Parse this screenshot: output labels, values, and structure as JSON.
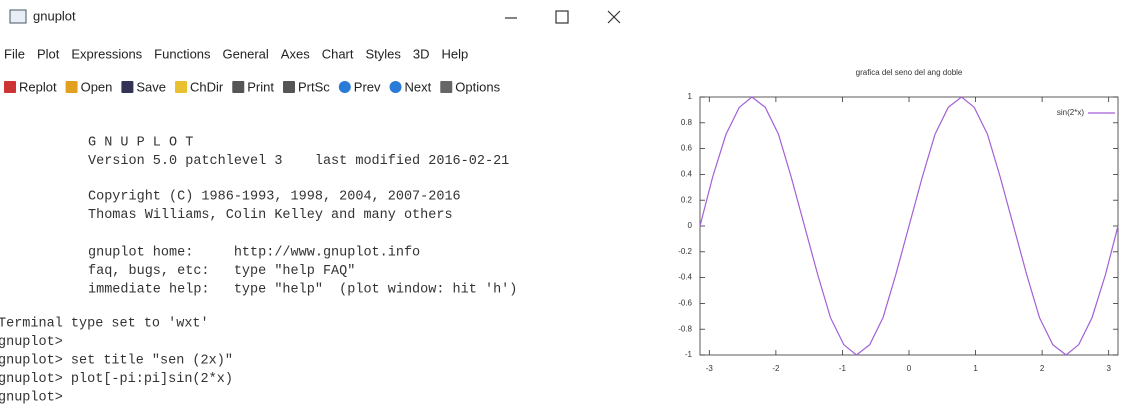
{
  "window": {
    "title": "gnuplot",
    "menu": [
      "File",
      "Plot",
      "Expressions",
      "Functions",
      "General",
      "Axes",
      "Chart",
      "Styles",
      "3D",
      "Help"
    ],
    "toolbar": [
      "Replot",
      "Open",
      "Save",
      "ChDir",
      "Print",
      "PrtSc",
      "Prev",
      "Next",
      "Options"
    ],
    "console": [
      [
        "G N U P L O T",
        "Version 5.0 patchlevel 3    last modified 2016-02-21"
      ],
      [
        "Copyright (C) 1986-1993, 1998, 2004, 2007-2016",
        "Thomas Williams, Colin Kelley and many others"
      ],
      [
        "gnuplot home:     http://www.gnuplot.info",
        "faq, bugs, etc:   type \"help FAQ\"",
        "immediate help:   type \"help\"  (plot window: hit 'h')"
      ],
      [
        "Terminal type set to 'wxt'",
        "gnuplot>",
        "gnuplot> set title \"sen (2x)\"",
        "gnuplot> plot[-pi:pi]sin(2*x)",
        "gnuplot>"
      ]
    ]
  },
  "chart_data": {
    "type": "line",
    "title": "grafica del seno del ang doble",
    "x": [
      -3.14,
      -2.95,
      -2.75,
      -2.55,
      -2.36,
      -2.16,
      -1.96,
      -1.77,
      -1.57,
      -1.37,
      -1.18,
      -0.98,
      -0.79,
      -0.59,
      -0.39,
      -0.2,
      0,
      0.2,
      0.39,
      0.59,
      0.79,
      0.98,
      1.18,
      1.37,
      1.57,
      1.77,
      1.96,
      2.16,
      2.36,
      2.55,
      2.75,
      2.95,
      3.14
    ],
    "series": [
      {
        "name": "sin(2*x)",
        "color": "#a35fd6",
        "values": [
          0,
          0.38,
          0.71,
          0.92,
          1,
          0.92,
          0.71,
          0.38,
          0,
          -0.38,
          -0.71,
          -0.92,
          -1,
          -0.92,
          -0.71,
          -0.38,
          0,
          0.38,
          0.71,
          0.92,
          1,
          0.92,
          0.71,
          0.38,
          0,
          -0.38,
          -0.71,
          -0.92,
          -1,
          -0.92,
          -0.71,
          -0.38,
          0
        ]
      }
    ],
    "xlim": [
      -3.14,
      3.14
    ],
    "ylim": [
      -1,
      1
    ],
    "xticks": [
      -3,
      -2,
      -1,
      0,
      1,
      2,
      3
    ],
    "yticks": [
      -1,
      -0.8,
      -0.6,
      -0.4,
      -0.2,
      0,
      0.2,
      0.4,
      0.6,
      0.8,
      1
    ],
    "legend": "upper right"
  }
}
